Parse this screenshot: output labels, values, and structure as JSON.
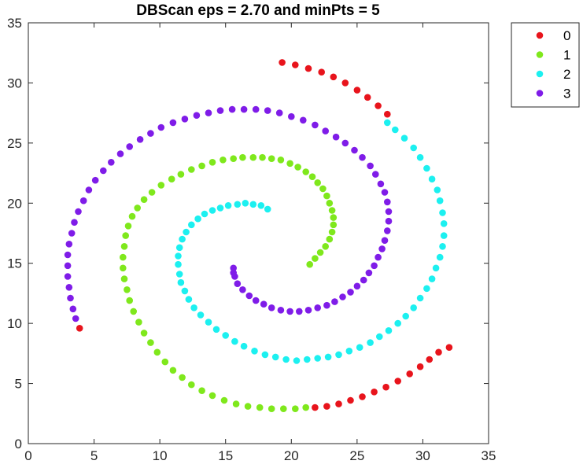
{
  "chart_data": {
    "type": "scatter",
    "title": "DBScan eps = 2.70 and minPts = 5",
    "xlabel": "",
    "ylabel": "",
    "xlim": [
      0,
      35
    ],
    "ylim": [
      0,
      35
    ],
    "xticks": [
      0,
      5,
      10,
      15,
      20,
      25,
      30,
      35
    ],
    "yticks": [
      0,
      5,
      10,
      15,
      20,
      25,
      30,
      35
    ],
    "grid": false,
    "legend_position": "outside-top-right",
    "series": [
      {
        "name": "0",
        "color": "#e8141c",
        "points": [
          [
            3.9,
            9.6
          ],
          [
            19.3,
            31.7
          ],
          [
            20.3,
            31.5
          ],
          [
            21.3,
            31.2
          ],
          [
            22.3,
            30.9
          ],
          [
            23.2,
            30.5
          ],
          [
            24.1,
            30.0
          ],
          [
            25.0,
            29.4
          ],
          [
            25.8,
            28.8
          ],
          [
            26.6,
            28.1
          ],
          [
            27.3,
            27.4
          ],
          [
            21.8,
            3.0
          ],
          [
            22.7,
            3.1
          ],
          [
            23.6,
            3.3
          ],
          [
            24.5,
            3.6
          ],
          [
            25.4,
            3.9
          ],
          [
            26.3,
            4.3
          ],
          [
            27.2,
            4.7
          ],
          [
            28.1,
            5.2
          ],
          [
            29.0,
            5.8
          ],
          [
            29.8,
            6.4
          ],
          [
            30.5,
            7.0
          ],
          [
            31.2,
            7.6
          ],
          [
            32.0,
            8.0
          ]
        ]
      },
      {
        "name": "1",
        "color": "#7fe81c",
        "points": [
          [
            21.4,
            14.9
          ],
          [
            21.8,
            15.4
          ],
          [
            22.2,
            15.9
          ],
          [
            22.6,
            16.4
          ],
          [
            22.9,
            17.0
          ],
          [
            23.1,
            17.6
          ],
          [
            23.2,
            18.2
          ],
          [
            23.2,
            18.8
          ],
          [
            23.1,
            19.4
          ],
          [
            22.9,
            20.0
          ],
          [
            22.7,
            20.6
          ],
          [
            22.4,
            21.2
          ],
          [
            22.0,
            21.7
          ],
          [
            21.6,
            22.2
          ],
          [
            21.1,
            22.6
          ],
          [
            20.5,
            23.0
          ],
          [
            19.9,
            23.3
          ],
          [
            19.2,
            23.6
          ],
          [
            18.5,
            23.7
          ],
          [
            17.8,
            23.8
          ],
          [
            17.1,
            23.8
          ],
          [
            16.3,
            23.8
          ],
          [
            15.6,
            23.7
          ],
          [
            14.8,
            23.6
          ],
          [
            14.0,
            23.4
          ],
          [
            13.2,
            23.1
          ],
          [
            12.4,
            22.8
          ],
          [
            11.6,
            22.4
          ],
          [
            10.9,
            22.0
          ],
          [
            10.1,
            21.5
          ],
          [
            9.4,
            20.9
          ],
          [
            8.8,
            20.3
          ],
          [
            8.3,
            19.6
          ],
          [
            7.9,
            18.9
          ],
          [
            7.6,
            18.1
          ],
          [
            7.4,
            17.3
          ],
          [
            7.3,
            16.4
          ],
          [
            7.2,
            15.5
          ],
          [
            7.2,
            14.6
          ],
          [
            7.3,
            13.7
          ],
          [
            7.5,
            12.8
          ],
          [
            7.7,
            11.9
          ],
          [
            8.0,
            11.0
          ],
          [
            8.4,
            10.1
          ],
          [
            8.8,
            9.2
          ],
          [
            9.3,
            8.4
          ],
          [
            9.8,
            7.6
          ],
          [
            10.4,
            6.8
          ],
          [
            11.0,
            6.1
          ],
          [
            11.7,
            5.5
          ],
          [
            12.4,
            4.9
          ],
          [
            13.2,
            4.4
          ],
          [
            14.0,
            4.0
          ],
          [
            14.9,
            3.6
          ],
          [
            15.8,
            3.3
          ],
          [
            16.7,
            3.1
          ],
          [
            17.6,
            3.0
          ],
          [
            18.5,
            2.9
          ],
          [
            19.4,
            2.9
          ],
          [
            20.3,
            2.9
          ],
          [
            21.1,
            3.0
          ]
        ]
      },
      {
        "name": "2",
        "color": "#1cf0f0",
        "points": [
          [
            18.2,
            19.5
          ],
          [
            17.7,
            19.8
          ],
          [
            17.1,
            19.9
          ],
          [
            16.5,
            20.0
          ],
          [
            15.9,
            19.9
          ],
          [
            15.2,
            19.8
          ],
          [
            14.6,
            19.6
          ],
          [
            14.0,
            19.4
          ],
          [
            13.4,
            19.1
          ],
          [
            12.9,
            18.7
          ],
          [
            12.4,
            18.2
          ],
          [
            12.0,
            17.6
          ],
          [
            11.7,
            17.0
          ],
          [
            11.5,
            16.3
          ],
          [
            11.4,
            15.6
          ],
          [
            11.4,
            14.9
          ],
          [
            11.5,
            14.1
          ],
          [
            11.6,
            13.4
          ],
          [
            11.9,
            12.7
          ],
          [
            12.2,
            12.0
          ],
          [
            12.6,
            11.3
          ],
          [
            13.1,
            10.7
          ],
          [
            13.7,
            10.1
          ],
          [
            14.3,
            9.5
          ],
          [
            15.0,
            9.0
          ],
          [
            15.7,
            8.5
          ],
          [
            16.4,
            8.1
          ],
          [
            17.2,
            7.7
          ],
          [
            18.0,
            7.4
          ],
          [
            18.8,
            7.2
          ],
          [
            19.6,
            7.0
          ],
          [
            20.4,
            6.9
          ],
          [
            21.2,
            7.0
          ],
          [
            22.0,
            7.1
          ],
          [
            22.8,
            7.2
          ],
          [
            23.6,
            7.4
          ],
          [
            24.4,
            7.7
          ],
          [
            25.2,
            8.0
          ],
          [
            26.0,
            8.4
          ],
          [
            26.7,
            8.9
          ],
          [
            27.4,
            9.4
          ],
          [
            28.1,
            10.0
          ],
          [
            28.7,
            10.6
          ],
          [
            29.3,
            11.3
          ],
          [
            29.8,
            12.1
          ],
          [
            30.3,
            12.9
          ],
          [
            30.7,
            13.7
          ],
          [
            31.0,
            14.6
          ],
          [
            31.3,
            15.5
          ],
          [
            31.5,
            16.4
          ],
          [
            31.6,
            17.3
          ],
          [
            31.6,
            18.3
          ],
          [
            31.5,
            19.2
          ],
          [
            31.3,
            20.2
          ],
          [
            31.1,
            21.1
          ],
          [
            30.7,
            22.0
          ],
          [
            30.3,
            22.9
          ],
          [
            29.8,
            23.8
          ],
          [
            29.3,
            24.6
          ],
          [
            28.6,
            25.4
          ],
          [
            27.9,
            26.1
          ],
          [
            27.3,
            26.7
          ]
        ]
      },
      {
        "name": "3",
        "color": "#7f1ce8",
        "points": [
          [
            15.6,
            14.6
          ],
          [
            15.7,
            13.9
          ],
          [
            15.9,
            13.3
          ],
          [
            16.3,
            12.8
          ],
          [
            16.8,
            12.3
          ],
          [
            17.3,
            11.9
          ],
          [
            17.9,
            11.6
          ],
          [
            18.5,
            11.3
          ],
          [
            19.2,
            11.1
          ],
          [
            19.9,
            11.0
          ],
          [
            20.6,
            11.0
          ],
          [
            21.3,
            11.1
          ],
          [
            22.0,
            11.3
          ],
          [
            22.7,
            11.5
          ],
          [
            23.3,
            11.8
          ],
          [
            23.9,
            12.2
          ],
          [
            24.5,
            12.6
          ],
          [
            25.0,
            13.1
          ],
          [
            25.5,
            13.6
          ],
          [
            25.9,
            14.2
          ],
          [
            26.3,
            14.8
          ],
          [
            26.6,
            15.5
          ],
          [
            26.9,
            16.2
          ],
          [
            27.1,
            16.9
          ],
          [
            27.3,
            17.7
          ],
          [
            27.4,
            18.5
          ],
          [
            27.4,
            19.3
          ],
          [
            27.3,
            20.1
          ],
          [
            27.1,
            20.9
          ],
          [
            26.8,
            21.6
          ],
          [
            26.4,
            22.4
          ],
          [
            26.0,
            23.1
          ],
          [
            25.4,
            23.8
          ],
          [
            24.8,
            24.4
          ],
          [
            24.1,
            25.0
          ],
          [
            23.4,
            25.5
          ],
          [
            22.6,
            26.0
          ],
          [
            21.8,
            26.5
          ],
          [
            20.9,
            26.9
          ],
          [
            20.0,
            27.2
          ],
          [
            19.1,
            27.5
          ],
          [
            18.2,
            27.7
          ],
          [
            17.3,
            27.8
          ],
          [
            16.4,
            27.8
          ],
          [
            15.5,
            27.8
          ],
          [
            14.6,
            27.7
          ],
          [
            13.7,
            27.5
          ],
          [
            12.8,
            27.3
          ],
          [
            11.9,
            27.0
          ],
          [
            11.0,
            26.7
          ],
          [
            10.1,
            26.3
          ],
          [
            9.3,
            25.8
          ],
          [
            8.5,
            25.3
          ],
          [
            7.7,
            24.7
          ],
          [
            7.0,
            24.1
          ],
          [
            6.3,
            23.4
          ],
          [
            5.7,
            22.7
          ],
          [
            5.1,
            21.9
          ],
          [
            4.6,
            21.1
          ],
          [
            4.2,
            20.2
          ],
          [
            3.8,
            19.3
          ],
          [
            3.5,
            18.4
          ],
          [
            3.3,
            17.5
          ],
          [
            3.1,
            16.6
          ],
          [
            3.0,
            15.7
          ],
          [
            3.0,
            14.8
          ],
          [
            3.0,
            13.9
          ],
          [
            3.1,
            13.0
          ],
          [
            3.2,
            12.1
          ],
          [
            3.4,
            11.2
          ],
          [
            3.6,
            10.4
          ],
          [
            15.6,
            14.2
          ]
        ]
      }
    ]
  }
}
